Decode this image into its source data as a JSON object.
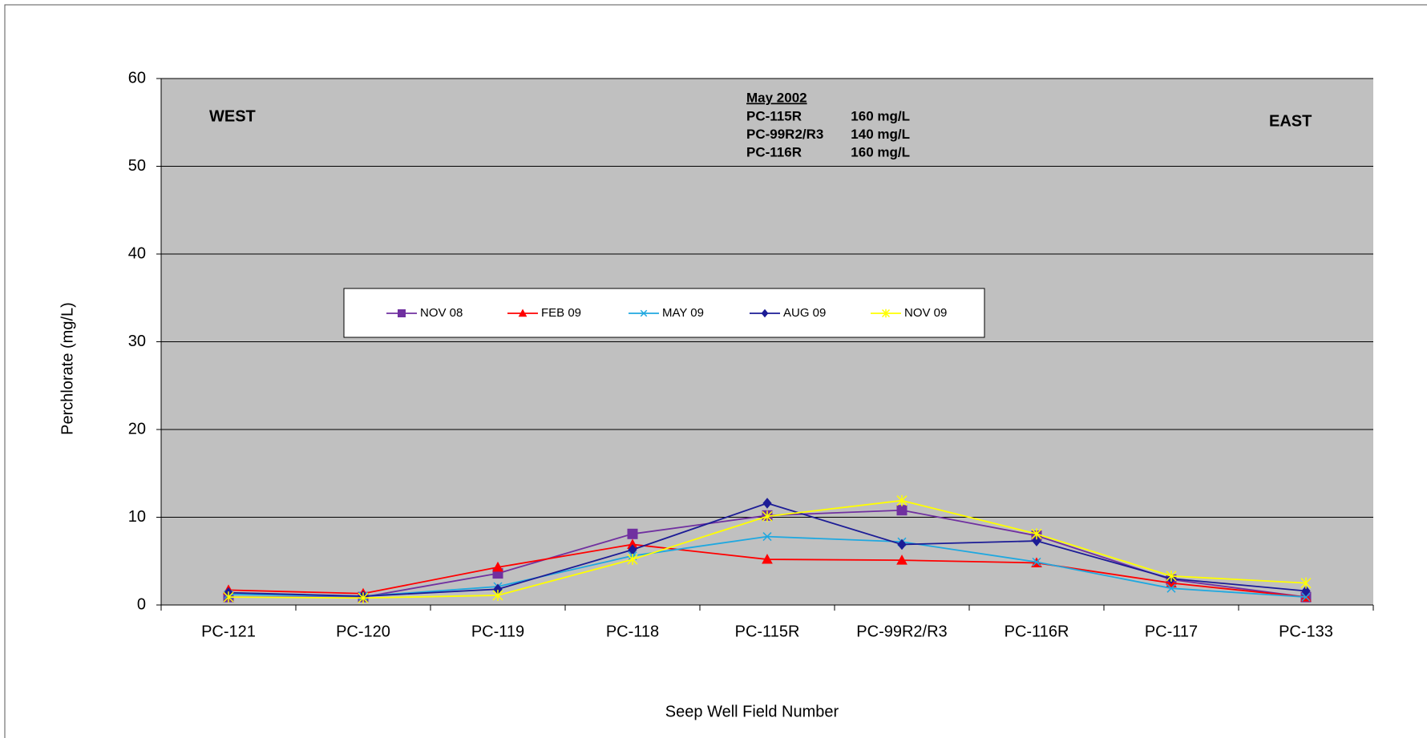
{
  "chart_data": {
    "type": "line",
    "x_label": "Seep Well Field Number",
    "y_label": "Perchlorate (mg/L)",
    "categories": [
      "PC-121",
      "PC-120",
      "PC-119",
      "PC-118",
      "PC-115R",
      "PC-99R2/R3",
      "PC-116R",
      "PC-117",
      "PC-133"
    ],
    "series": [
      {
        "name": "NOV 08",
        "color": "#7030a0",
        "marker": "square",
        "values": [
          0.9,
          0.9,
          3.6,
          8.1,
          10.2,
          10.8,
          7.9,
          2.9,
          0.9
        ]
      },
      {
        "name": "FEB 09",
        "color": "#ff0000",
        "marker": "triangle",
        "values": [
          1.7,
          1.3,
          4.3,
          6.9,
          5.2,
          5.1,
          4.8,
          2.5,
          0.9
        ]
      },
      {
        "name": "MAY 09",
        "color": "#1fa8e0",
        "marker": "x",
        "values": [
          1.2,
          1.0,
          2.1,
          5.6,
          7.8,
          7.2,
          4.9,
          1.9,
          0.9
        ]
      },
      {
        "name": "AUG 09",
        "color": "#1c1c96",
        "marker": "diamond",
        "values": [
          1.4,
          1.0,
          1.8,
          6.3,
          11.6,
          6.9,
          7.3,
          3.0,
          1.6
        ]
      },
      {
        "name": "NOV 09",
        "color": "#ffff00",
        "marker": "star",
        "values": [
          0.9,
          0.8,
          1.1,
          5.2,
          10.1,
          11.9,
          8.1,
          3.3,
          2.5
        ]
      }
    ],
    "ylim": [
      0,
      60
    ],
    "yticks": [
      0,
      10,
      20,
      30,
      40,
      50,
      60
    ],
    "grid": true,
    "legend": "center",
    "annotations": {
      "west": "WEST",
      "east": "EAST",
      "note_title": "May 2002",
      "note_lines": [
        [
          "PC-115R",
          "160 mg/L"
        ],
        [
          "PC-99R2/R3",
          "140 mg/L"
        ],
        [
          "PC-116R",
          "160 mg/L"
        ]
      ]
    }
  }
}
